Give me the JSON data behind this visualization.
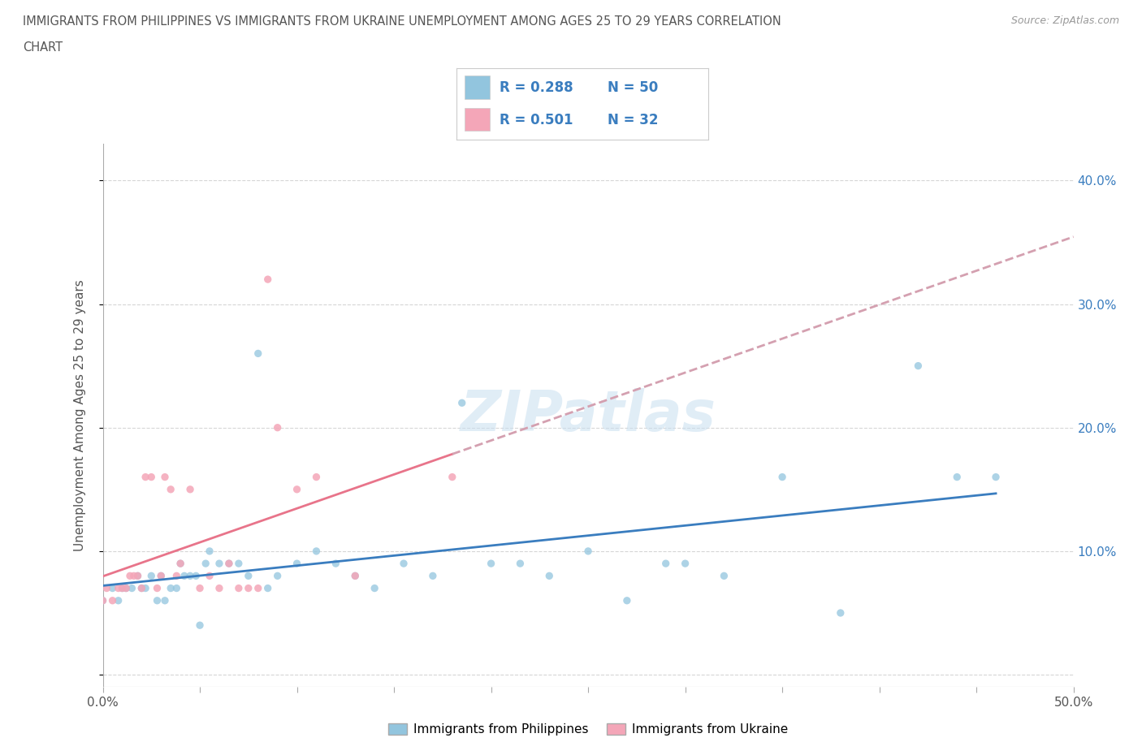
{
  "title_line1": "IMMIGRANTS FROM PHILIPPINES VS IMMIGRANTS FROM UKRAINE UNEMPLOYMENT AMONG AGES 25 TO 29 YEARS CORRELATION",
  "title_line2": "CHART",
  "source": "Source: ZipAtlas.com",
  "ylabel": "Unemployment Among Ages 25 to 29 years",
  "xlim": [
    0.0,
    0.5
  ],
  "ylim": [
    -0.01,
    0.43
  ],
  "xticks": [
    0.0,
    0.05,
    0.1,
    0.15,
    0.2,
    0.25,
    0.3,
    0.35,
    0.4,
    0.45,
    0.5
  ],
  "yticks": [
    0.0,
    0.1,
    0.2,
    0.3,
    0.4
  ],
  "right_ytick_labels": [
    "",
    "10.0%",
    "20.0%",
    "30.0%",
    "40.0%"
  ],
  "xtick_labels_show": {
    "0": "0.0%",
    "10": "50.0%"
  },
  "philippines_color": "#92c5de",
  "ukraine_color": "#f4a6b8",
  "trend_philippines_color": "#3a7dbf",
  "trend_ukraine_color": "#e8748a",
  "trend_ukraine_dashed_color": "#d4a0b0",
  "blue_text_color": "#3a7dbf",
  "watermark": "ZIPatlas",
  "legend_R_color": "#3a7dbf",
  "legend_N_color": "#3a7dbf",
  "legend_R_philippines": "R = 0.288",
  "legend_N_philippines": "N = 50",
  "legend_R_ukraine": "R = 0.501",
  "legend_N_ukraine": "N = 32",
  "philippines_x": [
    0.0,
    0.005,
    0.008,
    0.01,
    0.012,
    0.015,
    0.018,
    0.02,
    0.022,
    0.025,
    0.028,
    0.03,
    0.032,
    0.035,
    0.038,
    0.04,
    0.042,
    0.045,
    0.048,
    0.05,
    0.053,
    0.055,
    0.06,
    0.065,
    0.07,
    0.075,
    0.08,
    0.085,
    0.09,
    0.1,
    0.11,
    0.12,
    0.13,
    0.14,
    0.155,
    0.17,
    0.185,
    0.2,
    0.215,
    0.23,
    0.25,
    0.27,
    0.29,
    0.3,
    0.32,
    0.35,
    0.38,
    0.42,
    0.44,
    0.46
  ],
  "philippines_y": [
    0.06,
    0.07,
    0.06,
    0.07,
    0.07,
    0.07,
    0.08,
    0.07,
    0.07,
    0.08,
    0.06,
    0.08,
    0.06,
    0.07,
    0.07,
    0.09,
    0.08,
    0.08,
    0.08,
    0.04,
    0.09,
    0.1,
    0.09,
    0.09,
    0.09,
    0.08,
    0.26,
    0.07,
    0.08,
    0.09,
    0.1,
    0.09,
    0.08,
    0.07,
    0.09,
    0.08,
    0.22,
    0.09,
    0.09,
    0.08,
    0.1,
    0.06,
    0.09,
    0.09,
    0.08,
    0.16,
    0.05,
    0.25,
    0.16,
    0.16
  ],
  "ukraine_x": [
    0.0,
    0.002,
    0.005,
    0.008,
    0.01,
    0.012,
    0.014,
    0.016,
    0.018,
    0.02,
    0.022,
    0.025,
    0.028,
    0.03,
    0.032,
    0.035,
    0.038,
    0.04,
    0.045,
    0.05,
    0.055,
    0.06,
    0.065,
    0.07,
    0.075,
    0.08,
    0.085,
    0.09,
    0.1,
    0.11,
    0.13,
    0.18
  ],
  "ukraine_y": [
    0.06,
    0.07,
    0.06,
    0.07,
    0.07,
    0.07,
    0.08,
    0.08,
    0.08,
    0.07,
    0.16,
    0.16,
    0.07,
    0.08,
    0.16,
    0.15,
    0.08,
    0.09,
    0.15,
    0.07,
    0.08,
    0.07,
    0.09,
    0.07,
    0.07,
    0.07,
    0.32,
    0.2,
    0.15,
    0.16,
    0.08,
    0.16
  ]
}
